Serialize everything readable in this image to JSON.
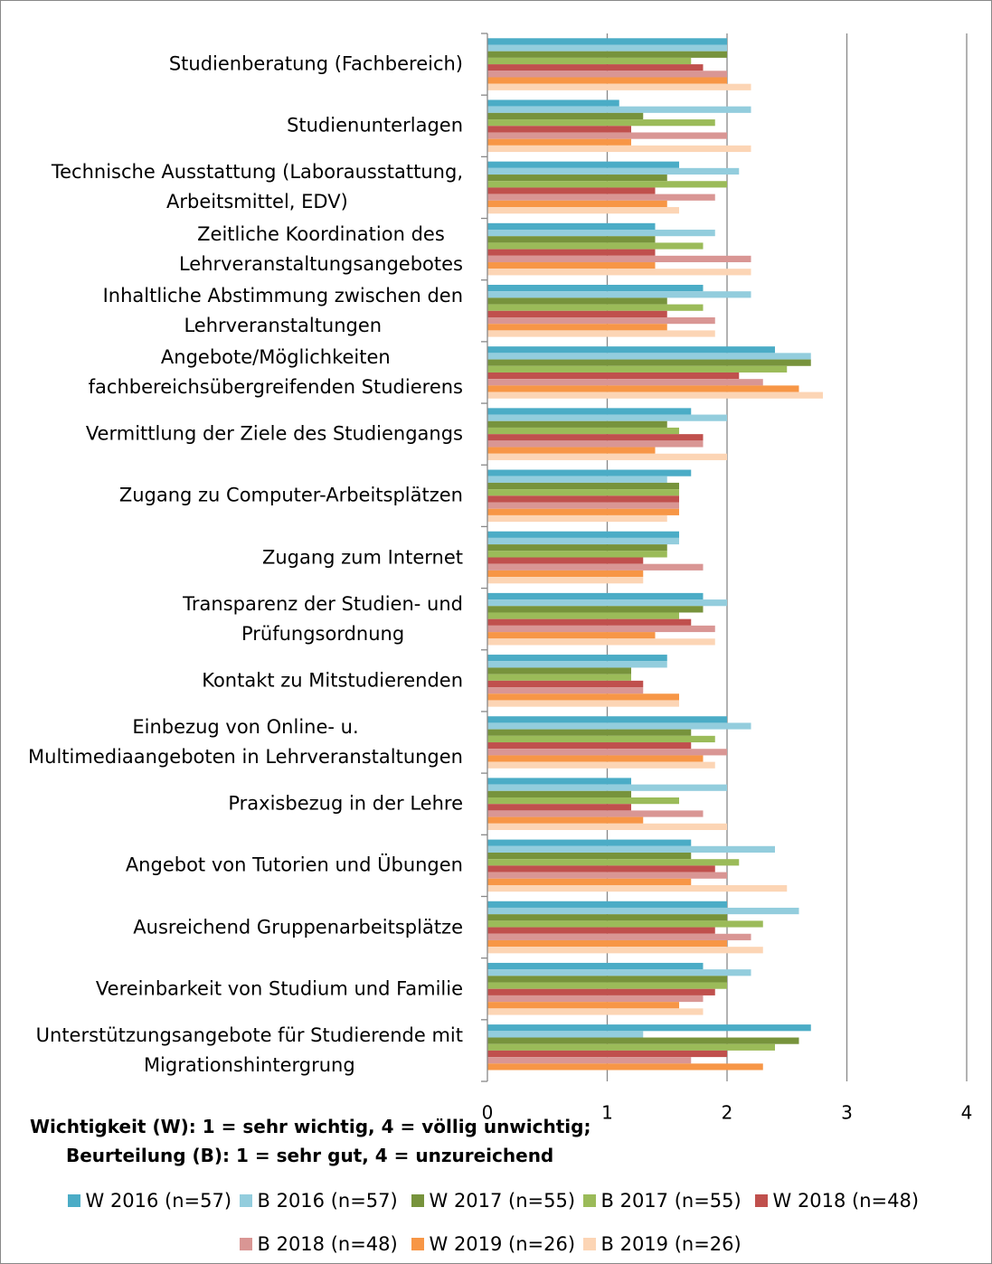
{
  "chart_data": {
    "type": "barh",
    "categories": [
      "Studienberatung (Fachbereich)",
      "Studienunterlagen",
      "Technische Ausstattung (Laborausstattung,\nArbeitsmittel, EDV)",
      "Zeitliche Koordination des\nLehrveranstaltungsangebotes",
      "Inhaltliche Abstimmung zwischen den\nLehrveranstaltungen",
      "Angebote/Möglichkeiten\nfachbereichsübergreifenden Studierens",
      "Vermittlung der Ziele des Studiengangs",
      "Zugang zu Computer-Arbeitsplätzen",
      "Zugang zum Internet",
      "Transparenz der Studien- und\nPrüfungsordnung",
      "Kontakt zu Mitstudierenden",
      "Einbezug von Online- u.\nMultimediaangeboten in Lehrveranstaltungen",
      "Praxisbezug in der Lehre",
      "Angebot von Tutorien und Übungen",
      "Ausreichend Gruppenarbeitsplätze",
      "Vereinbarkeit von Studium und Familie",
      "Unterstützungsangebote für Studierende mit\nMigrationshintergrung"
    ],
    "series": [
      {
        "name": "W 2016 (n=57)",
        "color": "#4bacc6",
        "values": [
          2.0,
          1.1,
          1.6,
          1.4,
          1.8,
          2.4,
          1.7,
          1.7,
          1.6,
          1.8,
          1.5,
          2.0,
          1.2,
          1.7,
          2.0,
          1.8,
          2.7
        ]
      },
      {
        "name": "B 2016 (n=57)",
        "color": "#93cddd",
        "values": [
          2.0,
          2.2,
          2.1,
          1.9,
          2.2,
          2.7,
          2.0,
          1.5,
          1.6,
          2.0,
          1.5,
          2.2,
          2.0,
          2.4,
          2.6,
          2.2,
          1.3
        ]
      },
      {
        "name": "W 2017 (n=55)",
        "color": "#77933c",
        "values": [
          2.0,
          1.3,
          1.5,
          1.4,
          1.5,
          2.7,
          1.5,
          1.6,
          1.5,
          1.8,
          1.2,
          1.7,
          1.2,
          1.7,
          2.0,
          2.0,
          2.6
        ]
      },
      {
        "name": "B 2017 (n=55)",
        "color": "#9bbb59",
        "values": [
          1.7,
          1.9,
          2.0,
          1.8,
          1.8,
          2.5,
          1.6,
          1.6,
          1.5,
          1.6,
          1.2,
          1.9,
          1.6,
          2.1,
          2.3,
          2.0,
          2.4
        ]
      },
      {
        "name": "W 2018 (n=48)",
        "color": "#c0504d",
        "values": [
          1.8,
          1.2,
          1.4,
          1.4,
          1.5,
          2.1,
          1.8,
          1.6,
          1.3,
          1.7,
          1.3,
          1.7,
          1.2,
          1.9,
          1.9,
          1.9,
          2.0
        ]
      },
      {
        "name": "B 2018 (n=48)",
        "color": "#d99694",
        "values": [
          2.0,
          2.0,
          1.9,
          2.2,
          1.9,
          2.3,
          1.8,
          1.6,
          1.8,
          1.9,
          1.3,
          2.0,
          1.8,
          2.0,
          2.2,
          1.8,
          1.7
        ]
      },
      {
        "name": "W 2019 (n=26)",
        "color": "#f79646",
        "values": [
          2.0,
          1.2,
          1.5,
          1.4,
          1.5,
          2.6,
          1.4,
          1.6,
          1.3,
          1.4,
          1.6,
          1.8,
          1.3,
          1.7,
          2.0,
          1.6,
          2.3
        ]
      },
      {
        "name": "B 2019 (n=26)",
        "color": "#fcd5b5",
        "values": [
          2.2,
          2.2,
          1.6,
          2.2,
          1.9,
          2.8,
          2.0,
          1.5,
          1.3,
          1.9,
          1.6,
          1.9,
          2.0,
          2.5,
          2.3,
          1.8,
          null
        ]
      }
    ],
    "xlim": [
      0,
      4
    ],
    "xticks": [
      0,
      1,
      2,
      3,
      4
    ],
    "grid": true,
    "annotations": [
      "Wichtigkeit (W): 1 = sehr wichtig, 4 = völlig unwichtig;",
      "Beurteilung (B): 1 = sehr gut, 4 = unzureichend"
    ]
  }
}
